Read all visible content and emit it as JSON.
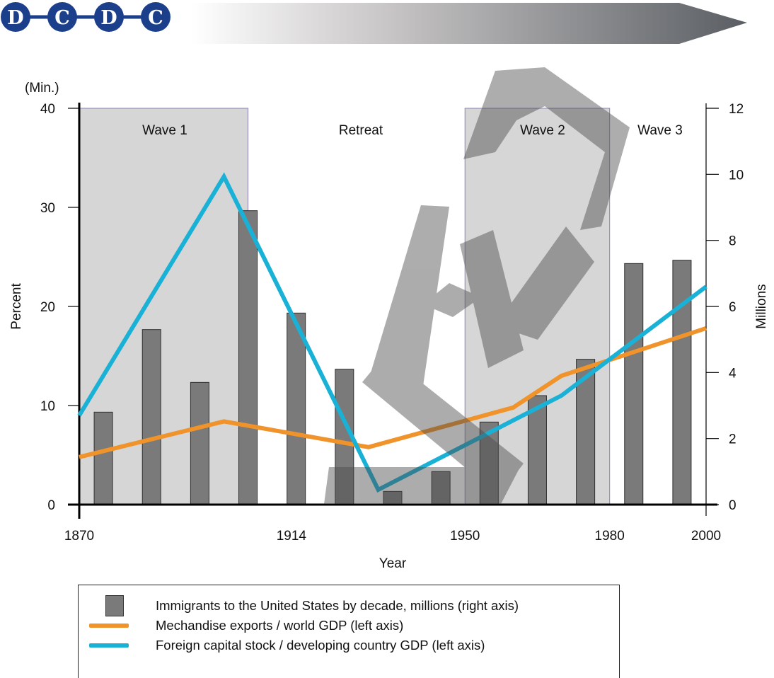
{
  "logo": {
    "text": "D-C-D-C",
    "colors": {
      "d": "#1c3f8c",
      "c": "#1c3f8c",
      "link": "#1c3f8c"
    }
  },
  "watermark": {
    "text": "REVIEWED"
  },
  "chart_data": {
    "type": "bar",
    "title": "",
    "xlabel": "Year",
    "ylabel_left": "Percent",
    "ylabel_left_unit": "(Min.)",
    "ylabel_right": "Millions",
    "x_range": [
      1870,
      2000
    ],
    "x_ticks": [
      1870,
      1914,
      1950,
      1980,
      2000
    ],
    "ylim_left": [
      0,
      40
    ],
    "yticks_left": [
      0,
      10,
      20,
      30,
      40
    ],
    "ylim_right": [
      0,
      12
    ],
    "yticks_right": [
      0,
      2,
      4,
      6,
      8,
      10,
      12
    ],
    "grid": false,
    "legend_position": "bottom",
    "periods": [
      {
        "label": "Wave 1",
        "start": 1870,
        "end": 1905,
        "shaded": true
      },
      {
        "label": "Retreat",
        "start": 1905,
        "end": 1950,
        "shaded": false
      },
      {
        "label": "Wave 2",
        "start": 1950,
        "end": 1980,
        "shaded": true
      },
      {
        "label": "Wave 3",
        "start": 1980,
        "end": 2000,
        "shaded": false
      }
    ],
    "bars": {
      "name": "Immigrants to the United States by decade, millions (right axis)",
      "axis": "right",
      "color": "#7a7a7a",
      "x": [
        1875,
        1885,
        1895,
        1905,
        1915,
        1925,
        1935,
        1945,
        1955,
        1965,
        1975,
        1985,
        1995
      ],
      "values": [
        2.8,
        5.3,
        3.7,
        8.9,
        5.8,
        4.1,
        0.4,
        1.0,
        2.5,
        3.3,
        4.4,
        7.3,
        7.4
      ]
    },
    "series": [
      {
        "name": "Mechandise exports / world GDP (left axis)",
        "axis": "left",
        "color": "#f0932b",
        "x": [
          1870,
          1900,
          1930,
          1960,
          1970,
          2000
        ],
        "values": [
          4.8,
          8.4,
          5.8,
          9.8,
          13.0,
          17.8
        ]
      },
      {
        "name": "Foreign capital stock / developing country GDP (left axis)",
        "axis": "left",
        "color": "#1ab1d6",
        "x": [
          1870,
          1900,
          1932,
          1970,
          2000
        ],
        "values": [
          9.0,
          33.1,
          1.5,
          11.0,
          22.0
        ]
      }
    ]
  }
}
